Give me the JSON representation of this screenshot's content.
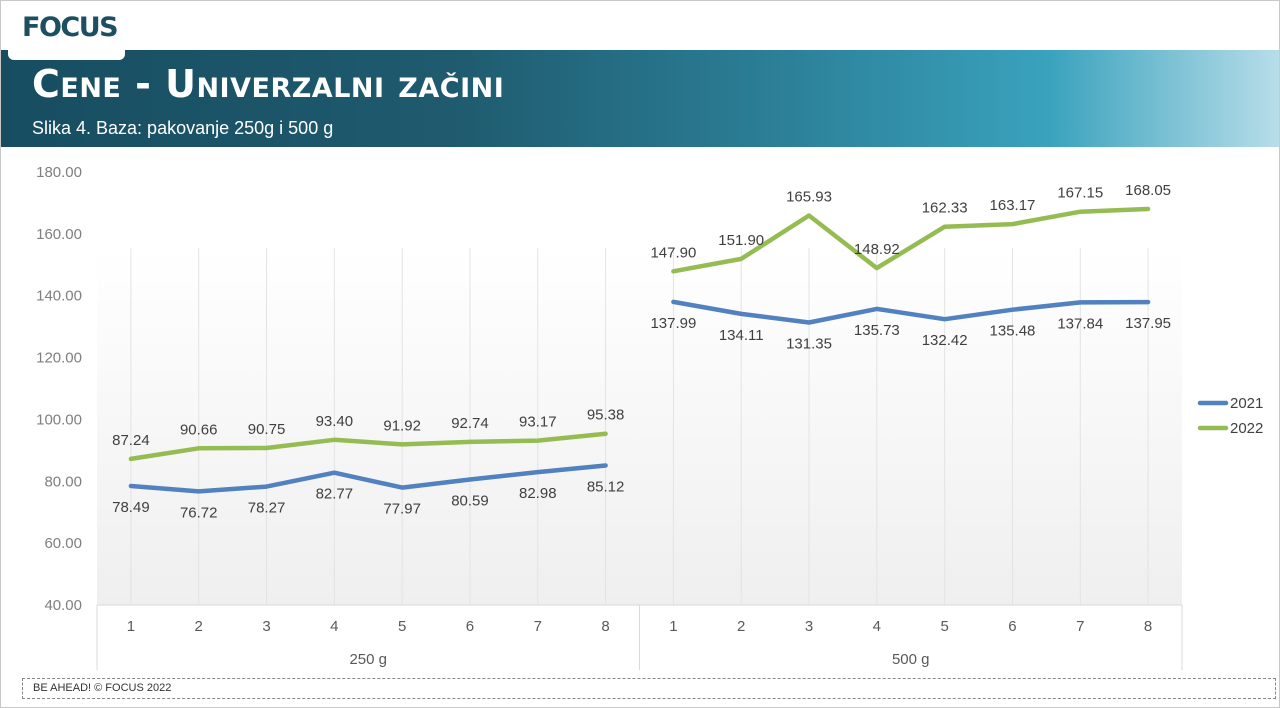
{
  "brand": {
    "logo_text": "FOCUS"
  },
  "header": {
    "title": "Cene - Univerzalni začini",
    "subtitle": "Slika 4. Baza: pakovanje 250g i 500 g"
  },
  "footer": {
    "text": "BE AHEAD! © FOCUS 2022"
  },
  "colors": {
    "2021": "#5181bf",
    "2022": "#95bc52",
    "banner_dark": "#174d61",
    "banner_light": "#b7dde9"
  },
  "chart_data": {
    "type": "line",
    "groups": [
      {
        "label": "250 g",
        "categories": [
          "1",
          "2",
          "3",
          "4",
          "5",
          "6",
          "7",
          "8"
        ]
      },
      {
        "label": "500 g",
        "categories": [
          "1",
          "2",
          "3",
          "4",
          "5",
          "6",
          "7",
          "8"
        ]
      }
    ],
    "series": [
      {
        "name": "2021",
        "values": [
          [
            78.49,
            76.72,
            78.27,
            82.77,
            77.97,
            80.59,
            82.98,
            85.12
          ],
          [
            137.99,
            134.11,
            131.35,
            135.73,
            132.42,
            135.48,
            137.84,
            137.95
          ]
        ],
        "labels": [
          [
            "78.49",
            "76.72",
            "78.27",
            "82.77",
            "77.97",
            "80.59",
            "82.98",
            "85.12"
          ],
          [
            "137.99",
            "134.11",
            "131.35",
            "135.73",
            "132.42",
            "135.48",
            "137.84",
            "137.95"
          ]
        ]
      },
      {
        "name": "2022",
        "values": [
          [
            87.24,
            90.66,
            90.75,
            93.4,
            91.92,
            92.74,
            93.17,
            95.38
          ],
          [
            147.9,
            151.9,
            165.93,
            148.92,
            162.33,
            163.17,
            167.15,
            168.05
          ]
        ],
        "labels": [
          [
            "87.24",
            "90.66",
            "90.75",
            "93.40",
            "91.92",
            "92.74",
            "93.17",
            "95.38"
          ],
          [
            "147.90",
            "151.90",
            "165.93",
            "148.92",
            "162.33",
            "163.17",
            "167.15",
            "168.05"
          ]
        ]
      }
    ],
    "yticks": [
      "40.00",
      "60.00",
      "80.00",
      "100.00",
      "120.00",
      "140.00",
      "160.00",
      "180.00"
    ],
    "ylim": [
      40,
      180
    ],
    "grid": "vertical",
    "legend": "right"
  }
}
